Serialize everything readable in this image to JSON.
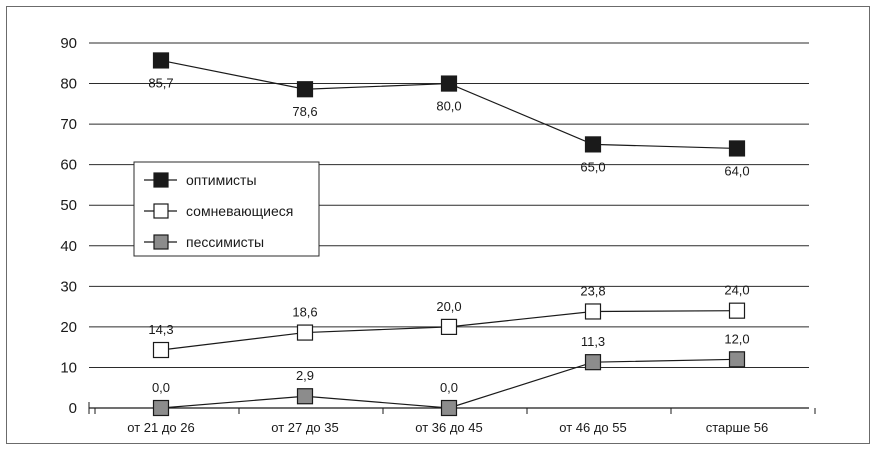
{
  "chart_data": {
    "type": "line",
    "categories": [
      "от 21 до 26",
      "от 27 до 35",
      "от 36 до 45",
      "от 46 до 55",
      "старше 56"
    ],
    "ylim": [
      0,
      90
    ],
    "yticks": [
      0,
      10,
      20,
      30,
      40,
      50,
      60,
      70,
      80,
      90
    ],
    "grid": true,
    "legend_position": "left-middle",
    "series": [
      {
        "name": "оптимисты",
        "values": [
          85.7,
          78.6,
          80.0,
          65.0,
          64.0
        ],
        "labels": [
          "85,7",
          "78,6",
          "80,0",
          "65,0",
          "64,0"
        ],
        "label_position": "below",
        "marker_color": "#1a1a1a"
      },
      {
        "name": "сомневающиеся",
        "values": [
          14.3,
          18.6,
          20.0,
          23.8,
          24.0
        ],
        "labels": [
          "14,3",
          "18,6",
          "20,0",
          "23,8",
          "24,0"
        ],
        "label_position": "above",
        "marker_color": "#ffffff"
      },
      {
        "name": "пессимисты",
        "values": [
          0.0,
          2.9,
          0.0,
          11.3,
          12.0
        ],
        "labels": [
          "0,0",
          "2,9",
          "0,0",
          "11,3",
          "12,0"
        ],
        "label_position": "above",
        "marker_color": "#8c8c8c"
      }
    ]
  }
}
